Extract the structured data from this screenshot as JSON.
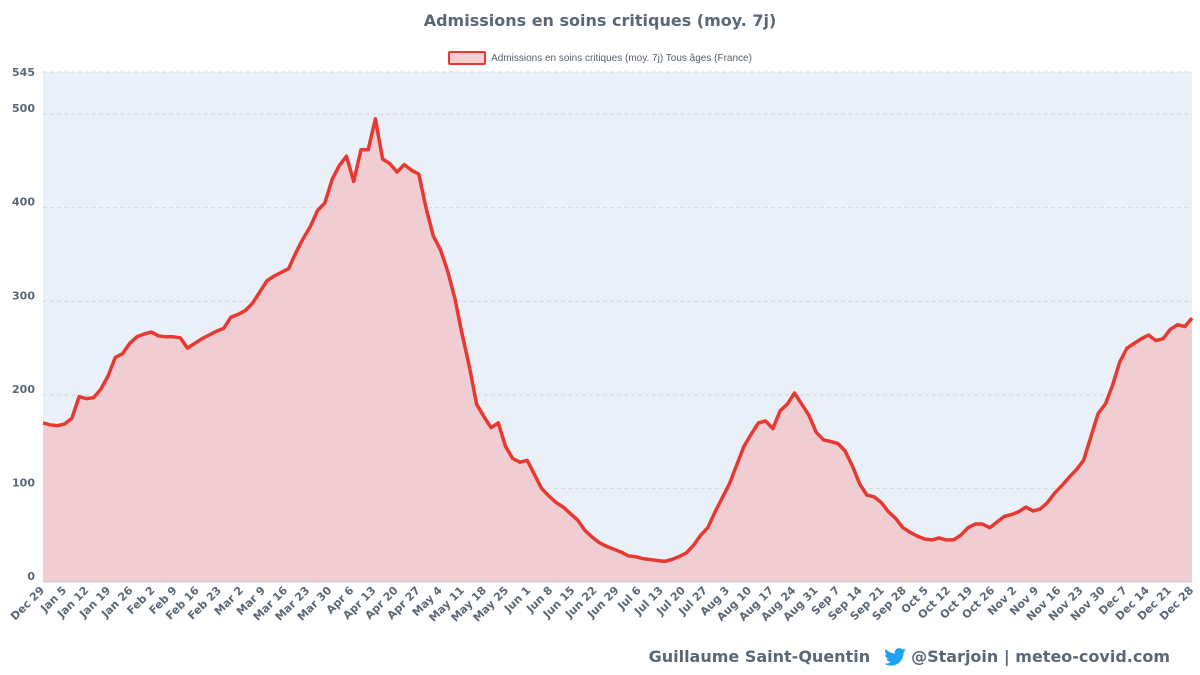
{
  "chart_data": {
    "type": "area",
    "title": "Admissions en soins critiques (moy. 7j)",
    "series": [
      {
        "name": "Admissions en soins critiques (moy. 7j) Tous âges (France)",
        "values": [
          170,
          168,
          167,
          169,
          175,
          198,
          196,
          197,
          206,
          220,
          240,
          244,
          255,
          262,
          265,
          267,
          263,
          262,
          262,
          261,
          250,
          255,
          260,
          264,
          268,
          271,
          283,
          286,
          290,
          298,
          310,
          322,
          327,
          331,
          335,
          352,
          367,
          380,
          397,
          405,
          430,
          445,
          455,
          428,
          462,
          462,
          495,
          452,
          447,
          438,
          446,
          440,
          436,
          400,
          370,
          355,
          332,
          303,
          265,
          230,
          190,
          177,
          165,
          170,
          145,
          132,
          128,
          130,
          115,
          100,
          92,
          85,
          80,
          73,
          66,
          55,
          48,
          42,
          38,
          35,
          32,
          28,
          27,
          25,
          24,
          23,
          22,
          24,
          27,
          31,
          39,
          50,
          58,
          75,
          90,
          105,
          125,
          145,
          158,
          170,
          172,
          164,
          183,
          190,
          202,
          190,
          178,
          160,
          152,
          150,
          148,
          140,
          124,
          105,
          93,
          91,
          85,
          75,
          68,
          58,
          53,
          49,
          46,
          45,
          47,
          45,
          45,
          50,
          58,
          62,
          62,
          58,
          64,
          70,
          72,
          75,
          80,
          76,
          78,
          85,
          95,
          103,
          112,
          120,
          130,
          155,
          180,
          190,
          210,
          235,
          250,
          255,
          260,
          264,
          258,
          260,
          270,
          275,
          273,
          282
        ]
      }
    ],
    "x_ticks": [
      "Dec 29",
      "Jan 5",
      "Jan 12",
      "Jan 19",
      "Jan 26",
      "Feb 2",
      "Feb 9",
      "Feb 16",
      "Feb 23",
      "Mar 2",
      "Mar 9",
      "Mar 16",
      "Mar 23",
      "Mar 30",
      "Apr 6",
      "Apr 13",
      "Apr 20",
      "Apr 27",
      "May 4",
      "May 11",
      "May 18",
      "May 25",
      "Jun 1",
      "Jun 8",
      "Jun 15",
      "Jun 22",
      "Jun 29",
      "Jul 6",
      "Jul 13",
      "Jul 20",
      "Jul 27",
      "Aug 3",
      "Aug 10",
      "Aug 17",
      "Aug 24",
      "Aug 31",
      "Sep 7",
      "Sep 14",
      "Sep 21",
      "Sep 28",
      "Oct 5",
      "Oct 12",
      "Oct 19",
      "Oct 26",
      "Nov 2",
      "Nov 9",
      "Nov 16",
      "Nov 23",
      "Nov 30",
      "Dec 7",
      "Dec 14",
      "Dec 21",
      "Dec 28"
    ],
    "y_ticks": [
      0,
      100,
      200,
      300,
      400,
      500,
      545
    ],
    "ylim": [
      0,
      545
    ],
    "grid": true,
    "legend_position": "top-center",
    "colors": {
      "line": "#e8382f",
      "fill": "#f0c7cb",
      "plot_background": "#eaf0f8",
      "grid": "#cfd6df",
      "text": "#5b6775"
    }
  },
  "footer": {
    "author": "Guillaume Saint-Quentin",
    "handle_site": "@Starjoin | meteo-covid.com",
    "icon": "twitter-icon"
  }
}
